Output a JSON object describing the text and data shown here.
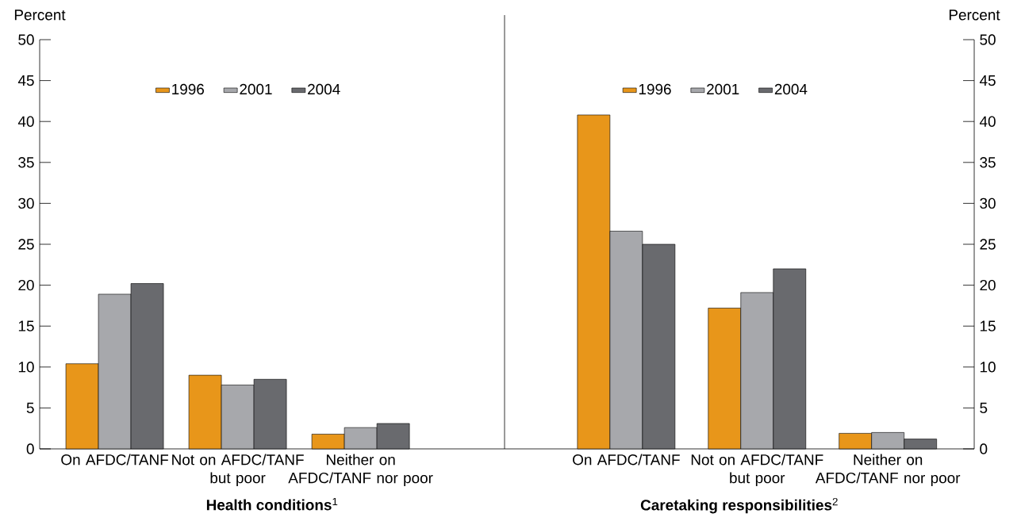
{
  "chart_data": [
    {
      "type": "bar",
      "xlabel": "**Health conditions**$^{1}$",
      "ylabel": "Percent",
      "categories": [
        "On AFDC/TANF",
        "Not on AFDC/TANF but poor",
        "Neither on AFDC/TANF nor poor"
      ],
      "series": [
        {
          "name": "1996",
          "color": "#e8961a",
          "values": [
            10.4,
            9.0,
            1.8
          ]
        },
        {
          "name": "2001",
          "color": "#a7a8ac",
          "values": [
            18.9,
            7.8,
            2.6
          ]
        },
        {
          "name": "2004",
          "color": "#696a6e",
          "values": [
            20.2,
            8.5,
            3.1
          ]
        }
      ],
      "ylim": [
        0,
        50
      ],
      "yticks": [
        0,
        5,
        10,
        15,
        20,
        25,
        30,
        35,
        40,
        45,
        50
      ],
      "legend": "top"
    },
    {
      "type": "bar",
      "xlabel": "**Caretaking responsibilities**$^{2}$",
      "ylabel": "Percent",
      "categories": [
        "On AFDC/TANF",
        "Not on AFDC/TANF but poor",
        "Neither on AFDC/TANF nor poor"
      ],
      "series": [
        {
          "name": "1996",
          "color": "#e8961a",
          "values": [
            40.8,
            17.2,
            1.9
          ]
        },
        {
          "name": "2001",
          "color": "#a7a8ac",
          "values": [
            26.6,
            19.1,
            2.0
          ]
        },
        {
          "name": "2004",
          "color": "#696a6e",
          "values": [
            25.0,
            22.0,
            1.2
          ]
        }
      ],
      "ylim": [
        0,
        50
      ],
      "yticks": [
        0,
        5,
        10,
        15,
        20,
        25,
        30,
        35,
        40,
        45,
        50
      ],
      "legend": "top"
    }
  ]
}
